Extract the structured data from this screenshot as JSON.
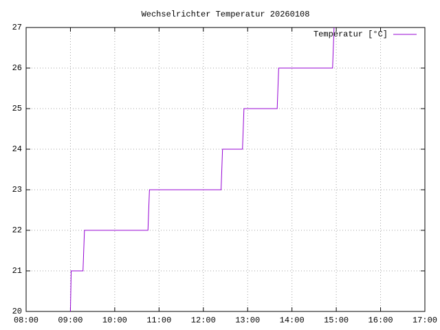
{
  "chart_data": {
    "type": "line",
    "title": "Wechselrichter Temperatur 20260108",
    "x": [
      "09:00",
      "09:01",
      "09:17",
      "09:19",
      "10:45",
      "10:47",
      "12:24",
      "12:26",
      "12:53",
      "12:55",
      "13:40",
      "13:42",
      "14:55",
      "14:57"
    ],
    "series": [
      {
        "name": "Temperatur [°C]",
        "color": "#9400d3",
        "values": [
          20,
          21,
          21,
          22,
          22,
          23,
          23,
          24,
          24,
          25,
          25,
          26,
          26,
          27
        ]
      }
    ],
    "xlim": [
      "08:00",
      "17:00"
    ],
    "xticks": [
      "08:00",
      "09:00",
      "10:00",
      "11:00",
      "12:00",
      "13:00",
      "14:00",
      "15:00",
      "16:00",
      "17:00"
    ],
    "ylim": [
      20,
      27
    ],
    "yticks": [
      20,
      21,
      22,
      23,
      24,
      25,
      26,
      27
    ],
    "grid": true,
    "legend": "top-right"
  }
}
